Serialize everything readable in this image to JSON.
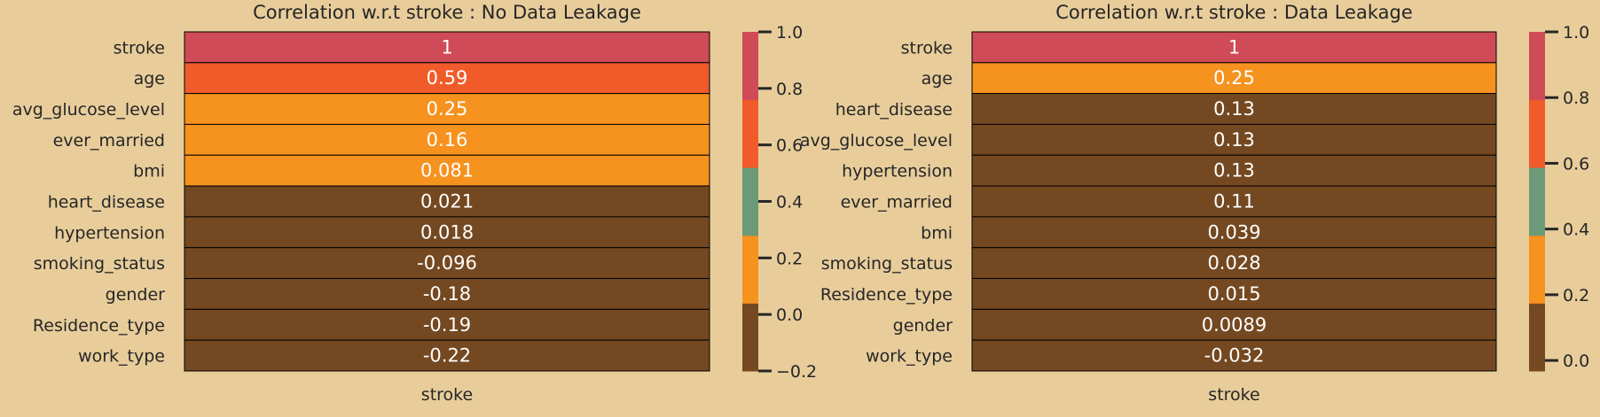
{
  "background": "#e8cd9b",
  "chart_data": [
    {
      "type": "heatmap",
      "title": "Correlation w.r.t stroke : No Data Leakage",
      "xlabel": "stroke",
      "rows": [
        "stroke",
        "age",
        "avg_glucose_level",
        "ever_married",
        "bmi",
        "heart_disease",
        "hypertension",
        "smoking_status",
        "gender",
        "Residence_type",
        "work_type"
      ],
      "values": [
        1,
        0.59,
        0.25,
        0.16,
        0.081,
        0.021,
        0.018,
        -0.096,
        -0.18,
        -0.19,
        -0.22
      ],
      "labels": [
        "1",
        "0.59",
        "0.25",
        "0.16",
        "0.081",
        "0.021",
        "0.018",
        "-0.096",
        "-0.18",
        "-0.19",
        "-0.22"
      ],
      "colormap": [
        "#744921",
        "#f6921e",
        "#6a9a78",
        "#f15b2a",
        "#cf4b57"
      ],
      "vmin": -0.2,
      "vmax": 1.0,
      "colorbar_ticks": [
        "−0.2",
        "0.0",
        "0.2",
        "0.4",
        "0.6",
        "0.8",
        "1.0"
      ],
      "colorbar_tick_values": [
        -0.2,
        0.0,
        0.2,
        0.4,
        0.6,
        0.8,
        1.0
      ]
    },
    {
      "type": "heatmap",
      "title": "Correlation w.r.t stroke : Data Leakage",
      "xlabel": "stroke",
      "rows": [
        "stroke",
        "age",
        "heart_disease",
        "avg_glucose_level",
        "hypertension",
        "ever_married",
        "bmi",
        "smoking_status",
        "Residence_type",
        "gender",
        "work_type"
      ],
      "values": [
        1,
        0.25,
        0.13,
        0.13,
        0.13,
        0.11,
        0.039,
        0.028,
        0.015,
        0.0089,
        -0.032
      ],
      "labels": [
        "1",
        "0.25",
        "0.13",
        "0.13",
        "0.13",
        "0.11",
        "0.039",
        "0.028",
        "0.015",
        "0.0089",
        "-0.032"
      ],
      "colormap": [
        "#744921",
        "#f6921e",
        "#6a9a78",
        "#f15b2a",
        "#cf4b57"
      ],
      "vmin": -0.032,
      "vmax": 1.0,
      "colorbar_ticks": [
        "0.0",
        "0.2",
        "0.4",
        "0.6",
        "0.8",
        "1.0"
      ],
      "colorbar_tick_values": [
        0.0,
        0.2,
        0.4,
        0.6,
        0.8,
        1.0
      ]
    }
  ]
}
